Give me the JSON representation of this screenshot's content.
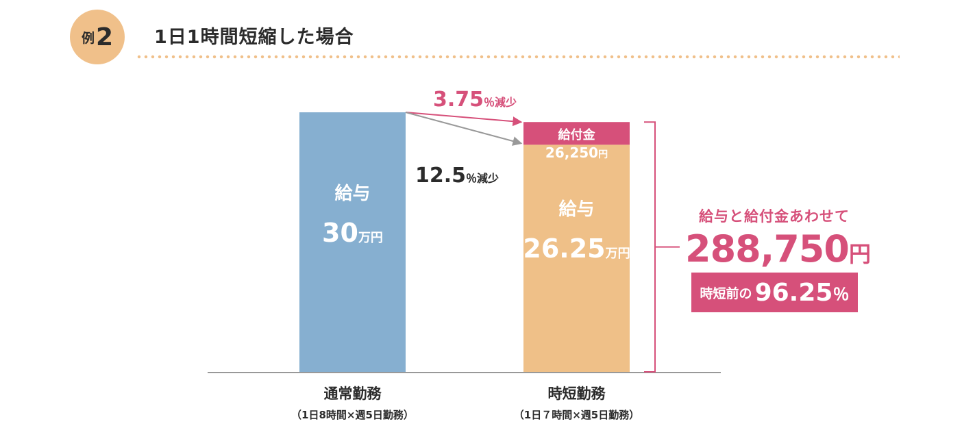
{
  "header": {
    "example_label": "例",
    "example_number": "2",
    "title": "1日1時間短縮した場合"
  },
  "colors": {
    "salary_normal": "#86afd0",
    "salary_short": "#efc088",
    "benefit": "#d6507a",
    "text": "#2b2b2b",
    "gray_arrow": "#999999",
    "axis": "#999999"
  },
  "chart_data": {
    "type": "bar",
    "stacked": true,
    "title": "1日1時間短縮した場合",
    "categories": [
      "通常勤務",
      "時短勤務"
    ],
    "category_notes": [
      "（1日8時間×週5日勤務）",
      "（1日７時間×週5日勤務）"
    ],
    "unit": "万円",
    "ylim": [
      0,
      30
    ],
    "series": [
      {
        "name": "給与",
        "values": [
          30,
          26.25
        ],
        "value_labels": [
          "30",
          "26.25"
        ],
        "unit_label": "万円"
      },
      {
        "name": "給付金",
        "values": [
          0,
          2.625
        ],
        "value_labels": [
          null,
          "26,250"
        ],
        "unit_label": "円"
      }
    ],
    "annotations": [
      {
        "value": "3.75",
        "suffix": "％減少",
        "color": "#d6507a"
      },
      {
        "value": "12.5",
        "suffix": "％減少",
        "color": "#2b2b2b"
      }
    ]
  },
  "summary": {
    "label": "給与と給付金あわせて",
    "total": "288,750",
    "total_unit": "円",
    "ratio_prefix": "時短前の",
    "ratio_value": "96.25",
    "ratio_unit": "％"
  }
}
